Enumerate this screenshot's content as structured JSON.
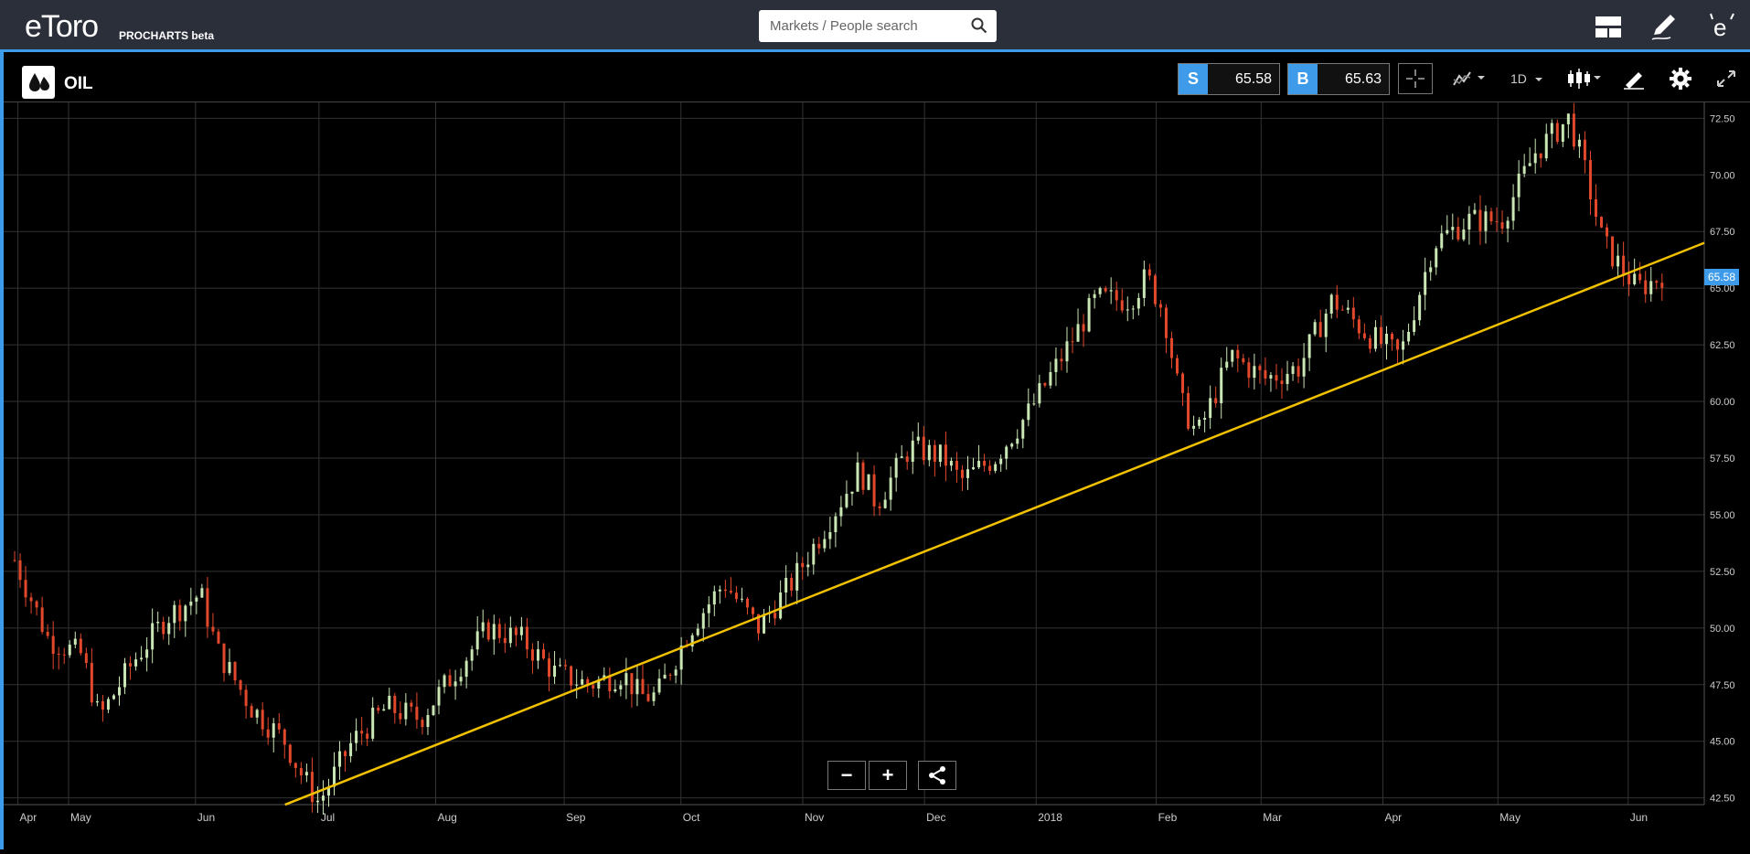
{
  "app": {
    "logo_text": "eToro",
    "logo_sub": "PROCHARTS beta"
  },
  "search": {
    "placeholder": "Markets / People search"
  },
  "toolbar": {
    "instrument": "OIL",
    "sell_label": "S",
    "sell_price": "65.58",
    "buy_label": "B",
    "buy_price": "65.63",
    "timeframe": "1D",
    "icons": [
      "crosshair-icon",
      "indicators-icon",
      "candlestick-type-icon",
      "drawing-tools-icon",
      "settings-icon",
      "fullscreen-icon"
    ]
  },
  "top_icons": [
    "layout-icon",
    "edit-icon",
    "etoro-home-icon"
  ],
  "chart": {
    "current_price_label": "65.58",
    "zoom_out": "−",
    "zoom_in": "+"
  },
  "chart_data": {
    "type": "candlestick",
    "y_ticks": [
      "72.50",
      "70.00",
      "67.50",
      "65.00",
      "62.50",
      "60.00",
      "57.50",
      "55.00",
      "52.50",
      "50.00",
      "47.50",
      "45.00",
      "42.50"
    ],
    "ylim": [
      41.8,
      73.2
    ],
    "x_labels": [
      "Apr",
      "May",
      "Jun",
      "Jul",
      "Aug",
      "Sep",
      "Oct",
      "Nov",
      "Dec",
      "2018",
      "Feb",
      "Mar",
      "Apr",
      "May",
      "Jun"
    ],
    "colors": {
      "up": "#c9e6b4",
      "down": "#e2482c",
      "trendline": "#f2c200",
      "grid": "#333333"
    },
    "trendline": {
      "start": [
        0.16,
        42.2
      ],
      "end": [
        1.0,
        67.0
      ]
    },
    "close_path": [
      [
        0.0,
        53.0
      ],
      [
        0.02,
        49.5
      ],
      [
        0.04,
        48.8
      ],
      [
        0.05,
        46.0
      ],
      [
        0.07,
        48.5
      ],
      [
        0.09,
        50.5
      ],
      [
        0.11,
        51.5
      ],
      [
        0.12,
        49.0
      ],
      [
        0.14,
        46.5
      ],
      [
        0.16,
        45.0
      ],
      [
        0.17,
        43.5
      ],
      [
        0.18,
        42.3
      ],
      [
        0.2,
        45.0
      ],
      [
        0.22,
        46.5
      ],
      [
        0.24,
        46.0
      ],
      [
        0.26,
        48.0
      ],
      [
        0.28,
        50.0
      ],
      [
        0.3,
        49.5
      ],
      [
        0.32,
        48.0
      ],
      [
        0.34,
        47.5
      ],
      [
        0.36,
        48.0
      ],
      [
        0.37,
        47.0
      ],
      [
        0.38,
        47.0
      ],
      [
        0.4,
        50.0
      ],
      [
        0.42,
        52.0
      ],
      [
        0.44,
        50.0
      ],
      [
        0.46,
        52.0
      ],
      [
        0.48,
        54.5
      ],
      [
        0.5,
        57.0
      ],
      [
        0.51,
        55.5
      ],
      [
        0.53,
        58.0
      ],
      [
        0.55,
        57.5
      ],
      [
        0.56,
        56.5
      ],
      [
        0.58,
        57.5
      ],
      [
        0.6,
        59.5
      ],
      [
        0.62,
        62.0
      ],
      [
        0.64,
        64.5
      ],
      [
        0.66,
        64.5
      ],
      [
        0.67,
        65.5
      ],
      [
        0.68,
        64.0
      ],
      [
        0.69,
        60.0
      ],
      [
        0.7,
        58.5
      ],
      [
        0.72,
        62.0
      ],
      [
        0.74,
        61.0
      ],
      [
        0.76,
        61.5
      ],
      [
        0.78,
        64.5
      ],
      [
        0.8,
        63.0
      ],
      [
        0.82,
        62.0
      ],
      [
        0.84,
        67.0
      ],
      [
        0.86,
        68.0
      ],
      [
        0.88,
        68.0
      ],
      [
        0.9,
        71.0
      ],
      [
        0.92,
        72.5
      ],
      [
        0.93,
        70.0
      ],
      [
        0.94,
        67.0
      ],
      [
        0.95,
        66.0
      ],
      [
        0.96,
        65.0
      ],
      [
        0.97,
        65.3
      ],
      [
        0.975,
        65.6
      ]
    ]
  }
}
